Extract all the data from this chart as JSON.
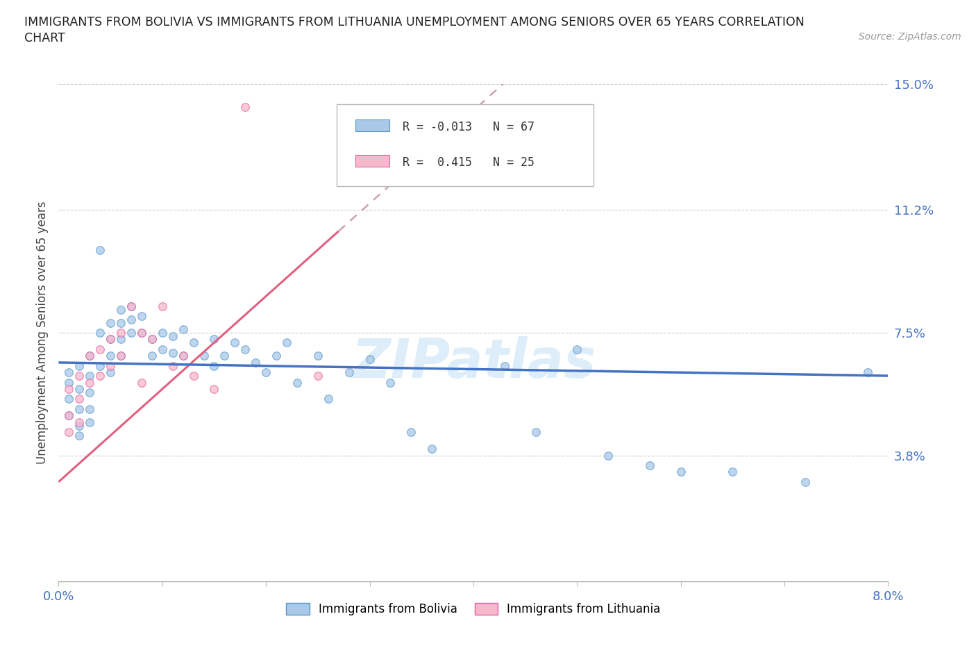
{
  "title_line1": "IMMIGRANTS FROM BOLIVIA VS IMMIGRANTS FROM LITHUANIA UNEMPLOYMENT AMONG SENIORS OVER 65 YEARS CORRELATION",
  "title_line2": "CHART",
  "source": "Source: ZipAtlas.com",
  "ylabel": "Unemployment Among Seniors over 65 years",
  "xlim": [
    0.0,
    0.08
  ],
  "ylim": [
    0.0,
    0.15
  ],
  "yticks": [
    0.0,
    0.038,
    0.075,
    0.112,
    0.15
  ],
  "ytick_labels": [
    "",
    "3.8%",
    "7.5%",
    "11.2%",
    "15.0%"
  ],
  "xticks": [
    0.0,
    0.01,
    0.02,
    0.03,
    0.04,
    0.05,
    0.06,
    0.07,
    0.08
  ],
  "xtick_labels": [
    "0.0%",
    "",
    "",
    "",
    "",
    "",
    "",
    "",
    "8.0%"
  ],
  "bolivia_color": "#aac8e8",
  "bolivia_edge_color": "#5599cc",
  "lithuania_color": "#f8b8cc",
  "lithuania_edge_color": "#e060a0",
  "bolivia_R": -0.013,
  "bolivia_N": 67,
  "lithuania_R": 0.415,
  "lithuania_N": 25,
  "trend_bolivia_color": "#4472c4",
  "trend_dash_color": "#d0a0b0",
  "trend_lithuania_color": "#e06080",
  "watermark": "ZIPatlas",
  "label_bolivia": "Immigrants from Bolivia",
  "label_lithuania": "Immigrants from Lithuania",
  "bolivia_x": [
    0.001,
    0.001,
    0.001,
    0.001,
    0.002,
    0.002,
    0.002,
    0.002,
    0.002,
    0.003,
    0.003,
    0.003,
    0.003,
    0.003,
    0.004,
    0.004,
    0.004,
    0.005,
    0.005,
    0.005,
    0.005,
    0.006,
    0.006,
    0.006,
    0.006,
    0.007,
    0.007,
    0.007,
    0.008,
    0.008,
    0.009,
    0.009,
    0.01,
    0.01,
    0.011,
    0.011,
    0.012,
    0.012,
    0.013,
    0.014,
    0.015,
    0.015,
    0.016,
    0.017,
    0.018,
    0.019,
    0.02,
    0.021,
    0.022,
    0.023,
    0.025,
    0.026,
    0.028,
    0.03,
    0.032,
    0.034,
    0.036,
    0.04,
    0.043,
    0.046,
    0.05,
    0.053,
    0.057,
    0.06,
    0.065,
    0.072,
    0.078
  ],
  "bolivia_y": [
    0.06,
    0.055,
    0.05,
    0.063,
    0.065,
    0.058,
    0.052,
    0.047,
    0.044,
    0.068,
    0.062,
    0.057,
    0.052,
    0.048,
    0.1,
    0.075,
    0.065,
    0.078,
    0.073,
    0.068,
    0.063,
    0.082,
    0.078,
    0.073,
    0.068,
    0.083,
    0.079,
    0.075,
    0.08,
    0.075,
    0.073,
    0.068,
    0.075,
    0.07,
    0.074,
    0.069,
    0.076,
    0.068,
    0.072,
    0.068,
    0.073,
    0.065,
    0.068,
    0.072,
    0.07,
    0.066,
    0.063,
    0.068,
    0.072,
    0.06,
    0.068,
    0.055,
    0.063,
    0.067,
    0.06,
    0.045,
    0.04,
    0.128,
    0.065,
    0.045,
    0.07,
    0.038,
    0.035,
    0.033,
    0.033,
    0.03,
    0.063
  ],
  "lithuania_x": [
    0.001,
    0.001,
    0.001,
    0.002,
    0.002,
    0.002,
    0.003,
    0.003,
    0.004,
    0.004,
    0.005,
    0.005,
    0.006,
    0.006,
    0.007,
    0.008,
    0.008,
    0.009,
    0.01,
    0.011,
    0.012,
    0.013,
    0.015,
    0.018,
    0.025
  ],
  "lithuania_y": [
    0.058,
    0.05,
    0.045,
    0.062,
    0.055,
    0.048,
    0.068,
    0.06,
    0.07,
    0.062,
    0.073,
    0.065,
    0.075,
    0.068,
    0.083,
    0.06,
    0.075,
    0.073,
    0.083,
    0.065,
    0.068,
    0.062,
    0.058,
    0.143,
    0.062
  ]
}
